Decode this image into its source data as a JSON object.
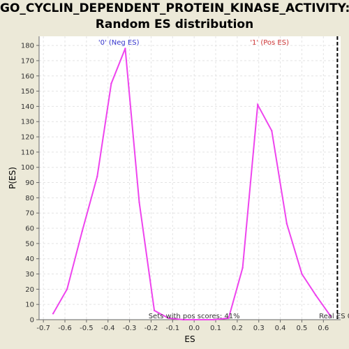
{
  "title_line1": "GO_CYCLIN_DEPENDENT_PROTEIN_KINASE_ACTIVITY:",
  "title_line2": "Random ES distribution",
  "colors": {
    "line": "#ee44ee",
    "neg_label": "#3333cc",
    "pos_label": "#cc3333",
    "background": "#ece9d8",
    "plot_bg": "#ffffff"
  },
  "chart_data": {
    "type": "line",
    "xlabel": "ES",
    "ylabel": "P(ES)",
    "xlim": [
      -0.72,
      0.68
    ],
    "ylim": [
      0,
      186
    ],
    "x_ticks": [
      -0.7,
      -0.6,
      -0.5,
      -0.4,
      -0.3,
      -0.2,
      -0.1,
      0.0,
      0.1,
      0.2,
      0.3,
      0.4,
      0.5,
      0.6
    ],
    "x_tick_labels": [
      "-0.7",
      "-0.6",
      "-0.5",
      "-0.4",
      "-0.3",
      "-0.2",
      "-0.1",
      "0.0",
      "0.1",
      "0.2",
      "0.3",
      "0.4",
      "0.5",
      "0.6"
    ],
    "y_ticks": [
      0,
      10,
      20,
      30,
      40,
      50,
      60,
      70,
      80,
      90,
      100,
      110,
      120,
      130,
      140,
      150,
      160,
      170,
      180
    ],
    "grid": true,
    "series": [
      {
        "x": [
          -0.655,
          -0.59,
          -0.52,
          -0.45,
          -0.385,
          -0.32,
          -0.255,
          -0.185,
          -0.12,
          -0.05,
          0.0,
          0.09,
          0.16,
          0.225,
          0.295,
          0.36,
          0.43,
          0.5,
          0.565,
          0.635
        ],
        "y": [
          4,
          20,
          58,
          94,
          155,
          178,
          77,
          6,
          1,
          0,
          0,
          0,
          1,
          34,
          141,
          124,
          63,
          30,
          16,
          2
        ]
      }
    ],
    "annotations": {
      "neg_label": "'0' (Neg ES)",
      "pos_label": "'1' (Pos ES)",
      "sets_text": "Sets with pos scores: 41%",
      "real_es_text": "Real ES 0.",
      "real_es_x": 0.665
    }
  }
}
